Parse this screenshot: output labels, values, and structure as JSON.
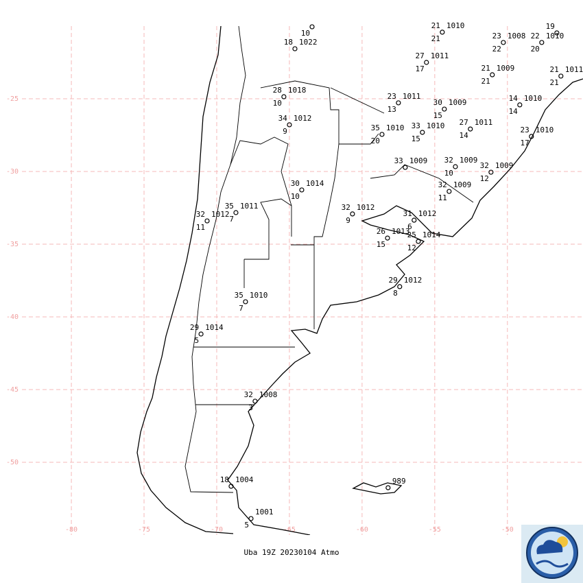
{
  "map": {
    "xlim": [
      -83.4,
      -44.8
    ],
    "ylim": [
      -55,
      -20
    ],
    "xticks": [
      -80,
      -75,
      -70,
      -65,
      -60,
      -55,
      -50
    ],
    "yticks": [
      -25,
      -30,
      -35,
      -40,
      -45,
      -50
    ],
    "grid": true,
    "gridColor": "#f5b8b8"
  },
  "caption": "Uba 19Z 20230104 Atmo",
  "stations": [
    {
      "lon": -63.44,
      "lat": -20.05,
      "dewpoint": 10
    },
    {
      "lon": -64.62,
      "lat": -21.56,
      "temperature": 18,
      "pressure": 1022
    },
    {
      "lon": -65.38,
      "lat": -24.86,
      "temperature": 28,
      "pressure": 1018,
      "dewpoint": 10
    },
    {
      "lon": -65.0,
      "lat": -26.79,
      "temperature": 34,
      "pressure": 1012,
      "dewpoint": 9
    },
    {
      "lon": -54.48,
      "lat": -20.42,
      "temperature": 21,
      "pressure": 1010,
      "dewpoint": 21
    },
    {
      "lon": -50.28,
      "lat": -21.13,
      "temperature": 23,
      "pressure": 1008,
      "dewpoint": 22
    },
    {
      "lon": -47.64,
      "lat": -21.13,
      "temperature": 22,
      "pressure": 1010,
      "dewpoint": 20
    },
    {
      "lon": -46.6,
      "lat": -20.47,
      "temperature": 19
    },
    {
      "lon": -55.57,
      "lat": -22.5,
      "temperature": 27,
      "pressure": 1011,
      "dewpoint": 17
    },
    {
      "lon": -51.04,
      "lat": -23.35,
      "temperature": 21,
      "pressure": 1009,
      "dewpoint": 21
    },
    {
      "lon": -46.32,
      "lat": -23.44,
      "temperature": 21,
      "pressure": 1011,
      "dewpoint": 21
    },
    {
      "lon": -57.5,
      "lat": -25.28,
      "temperature": 23,
      "pressure": 1011,
      "dewpoint": 13
    },
    {
      "lon": -54.34,
      "lat": -25.71,
      "temperature": 30,
      "pressure": 1009,
      "dewpoint": 15
    },
    {
      "lon": -49.15,
      "lat": -25.42,
      "temperature": 14,
      "pressure": 1010,
      "dewpoint": 14
    },
    {
      "lon": -58.63,
      "lat": -27.45,
      "temperature": 35,
      "pressure": 1010,
      "dewpoint": 20
    },
    {
      "lon": -55.85,
      "lat": -27.31,
      "temperature": 33,
      "pressure": 1010,
      "dewpoint": 15
    },
    {
      "lon": -52.55,
      "lat": -27.08,
      "temperature": 27,
      "pressure": 1011,
      "dewpoint": 14
    },
    {
      "lon": -48.35,
      "lat": -27.59,
      "temperature": 23,
      "pressure": 1010,
      "dewpoint": 17
    },
    {
      "lon": -57.03,
      "lat": -29.72,
      "temperature": 33,
      "pressure": 1009
    },
    {
      "lon": -53.58,
      "lat": -29.67,
      "temperature": 32,
      "pressure": 1009,
      "dewpoint": 10
    },
    {
      "lon": -51.13,
      "lat": -30.05,
      "temperature": 32,
      "pressure": 1009,
      "dewpoint": 12
    },
    {
      "lon": -54.01,
      "lat": -31.37,
      "temperature": 32,
      "pressure": 1009,
      "dewpoint": 11
    },
    {
      "lon": -64.15,
      "lat": -31.27,
      "temperature": 30,
      "pressure": 1014,
      "dewpoint": 10
    },
    {
      "lon": -60.66,
      "lat": -32.92,
      "temperature": 32,
      "pressure": 1012,
      "dewpoint": 9
    },
    {
      "lon": -68.68,
      "lat": -32.83,
      "temperature": 35,
      "pressure": 1011,
      "dewpoint": 7
    },
    {
      "lon": -70.66,
      "lat": -33.4,
      "temperature": 32,
      "pressure": 1012,
      "dewpoint": 11
    },
    {
      "lon": -56.42,
      "lat": -33.35,
      "temperature": 31,
      "pressure": 1012,
      "dewpoint": 6
    },
    {
      "lon": -58.25,
      "lat": -34.58,
      "temperature": 26,
      "pressure": 1013,
      "dewpoint": 15
    },
    {
      "lon": -56.13,
      "lat": -34.81,
      "temperature": 25,
      "pressure": 1014,
      "dewpoint": 12
    },
    {
      "lon": -57.41,
      "lat": -37.92,
      "temperature": 29,
      "pressure": 1012,
      "dewpoint": 8
    },
    {
      "lon": -68.02,
      "lat": -38.96,
      "temperature": 35,
      "pressure": 1010,
      "dewpoint": 7
    },
    {
      "lon": -71.08,
      "lat": -41.18,
      "temperature": 29,
      "pressure": 1014,
      "dewpoint": 5
    },
    {
      "lon": -67.36,
      "lat": -45.8,
      "temperature": 32,
      "pressure": 1008,
      "dewpoint": 3
    },
    {
      "lon": -69.01,
      "lat": -51.65,
      "temperature": 18,
      "pressure": 1004
    },
    {
      "lon": -67.64,
      "lat": -53.87,
      "pressure": 1001,
      "dewpoint": 5
    },
    {
      "lon": -58.21,
      "lat": -51.75,
      "pressure": 989
    }
  ]
}
